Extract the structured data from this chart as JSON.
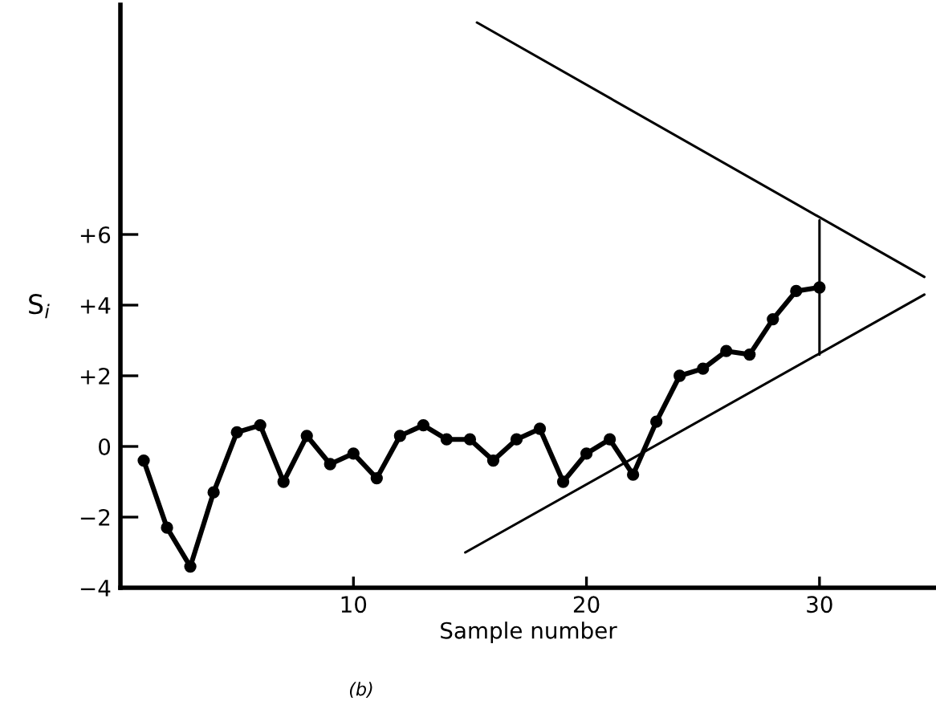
{
  "chart_data": {
    "type": "line",
    "xlabel": "Sample number",
    "ylabel": "S$_{i}$",
    "annotations": [
      "(b)"
    ],
    "xlim": [
      0,
      35
    ],
    "ylim": [
      -4,
      12.5
    ],
    "xticks": [
      10,
      20,
      30
    ],
    "yticks": [
      {
        "value": -4,
        "label": "−4"
      },
      {
        "value": -2,
        "label": "−2"
      },
      {
        "value": 0,
        "label": "0"
      },
      {
        "value": 2,
        "label": "+2"
      },
      {
        "value": 4,
        "label": "+4"
      },
      {
        "value": 6,
        "label": "+6"
      }
    ],
    "series": [
      {
        "color": "#000000",
        "marker": "circle",
        "x": [
          1,
          2,
          3,
          4,
          5,
          6,
          7,
          8,
          9,
          10,
          11,
          12,
          13,
          14,
          15,
          16,
          17,
          18,
          19,
          20,
          21,
          22,
          23,
          24,
          25,
          26,
          27,
          28,
          29,
          30
        ],
        "values": [
          -0.4,
          -2.3,
          -3.4,
          -1.3,
          0.4,
          0.6,
          -1.0,
          0.3,
          -0.5,
          -0.2,
          -0.9,
          0.3,
          0.6,
          0.2,
          0.2,
          -0.4,
          0.2,
          0.5,
          -1.0,
          -0.2,
          0.2,
          -0.8,
          0.7,
          2.0,
          2.2,
          2.7,
          2.6,
          3.6,
          4.4,
          4.5
        ]
      },
      {
        "color": "#000000",
        "marker": "none",
        "x": [
          15.3,
          34.5
        ],
        "values": [
          12.0,
          4.8
        ]
      },
      {
        "color": "#000000",
        "marker": "none",
        "x": [
          14.8,
          34.5
        ],
        "values": [
          -3.0,
          4.3
        ]
      },
      {
        "color": "#000000",
        "marker": "none",
        "x": [
          30,
          30
        ],
        "values": [
          6.4,
          2.6
        ]
      }
    ]
  }
}
